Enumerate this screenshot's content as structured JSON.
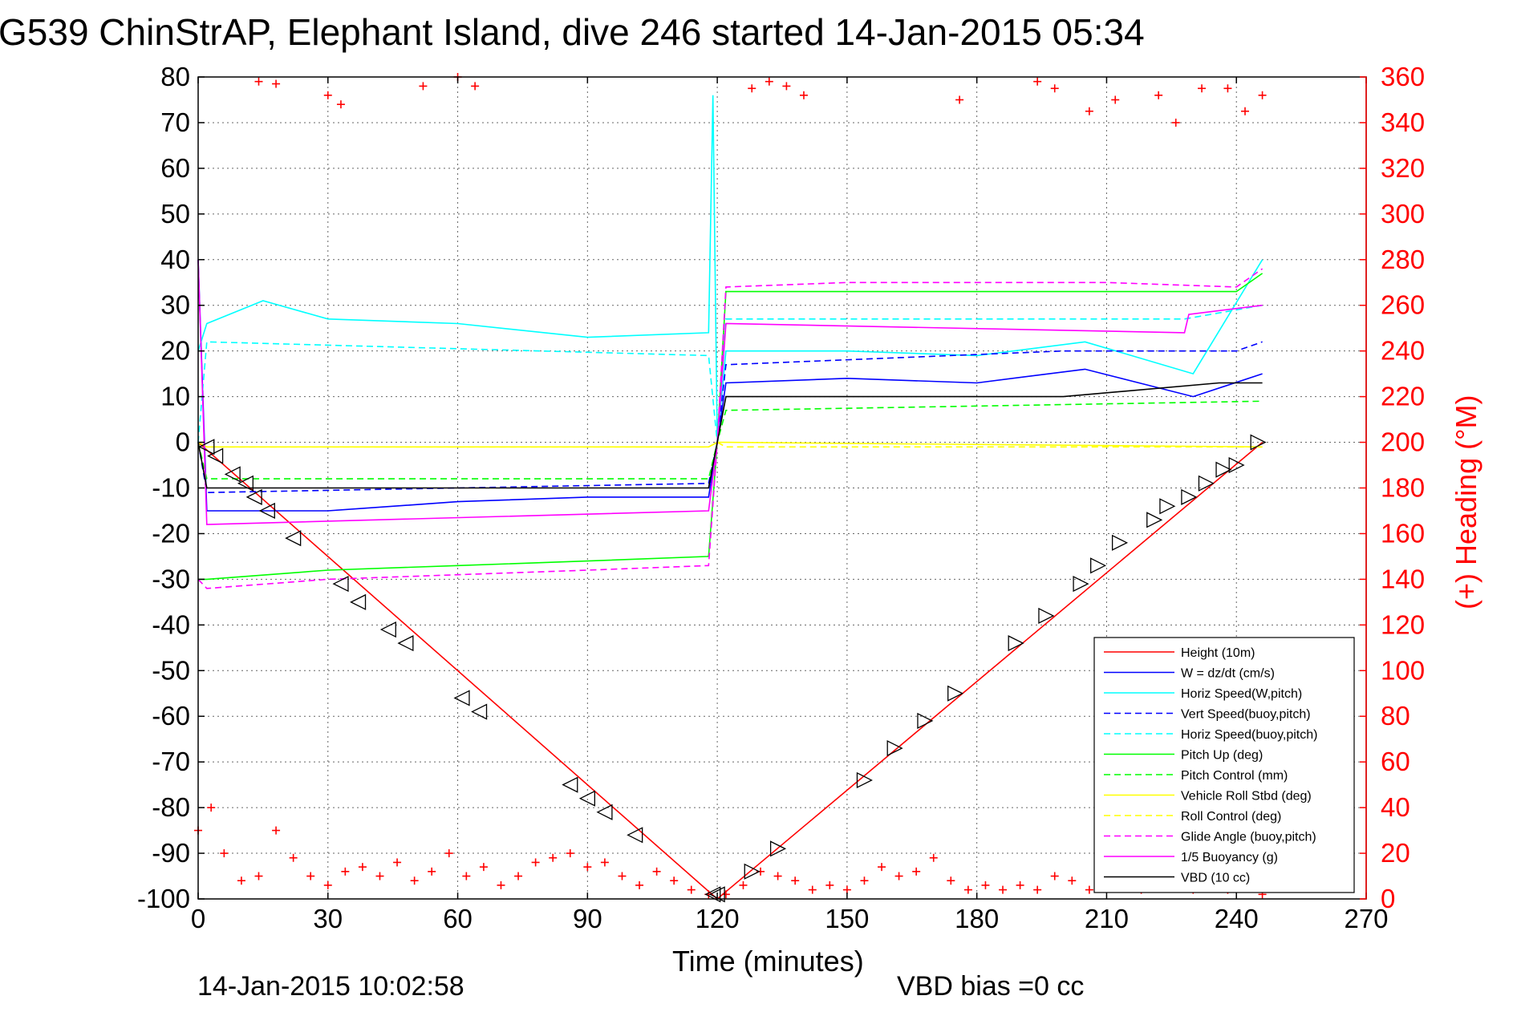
{
  "chart_data": {
    "type": "line",
    "title": "G539 ChinStrAP, Elephant Island, dive 246 started 14-Jan-2015 05:34",
    "xlabel": "Time (minutes)",
    "ylabel": "",
    "y2label": "(+) Heading (°M)",
    "xlim": [
      0,
      270
    ],
    "ylim": [
      -100,
      80
    ],
    "y2lim": [
      0,
      360
    ],
    "xticks": [
      "0",
      "30",
      "60",
      "90",
      "120",
      "150",
      "180",
      "210",
      "240",
      "270"
    ],
    "yticks": [
      "80",
      "70",
      "60",
      "50",
      "40",
      "30",
      "20",
      "10",
      "0",
      "-10",
      "-20",
      "-30",
      "-40",
      "-50",
      "-60",
      "-70",
      "-80",
      "-90",
      "-100"
    ],
    "y2ticks": [
      "360",
      "340",
      "320",
      "300",
      "280",
      "260",
      "240",
      "220",
      "200",
      "180",
      "160",
      "140",
      "120",
      "100",
      "80",
      "60",
      "40",
      "20",
      "0"
    ],
    "grid": true,
    "legend_position": "bottom-right",
    "footer_left": "14-Jan-2015 10:02:58",
    "footer_right": "VBD bias =0 cc",
    "series": [
      {
        "name": "Height (10m)",
        "color": "#ff0000",
        "style": "solid",
        "x": [
          0,
          120,
          246
        ],
        "y": [
          0,
          -100,
          0
        ]
      },
      {
        "name": "W = dz/dt (cm/s)",
        "color": "#0000ff",
        "style": "solid",
        "x": [
          0,
          2,
          30,
          60,
          90,
          118,
          120,
          122,
          150,
          180,
          205,
          230,
          246
        ],
        "y": [
          40,
          -15,
          -15,
          -13,
          -12,
          -12,
          0,
          13,
          14,
          13,
          16,
          10,
          15
        ]
      },
      {
        "name": "Horiz Speed(W,pitch)",
        "color": "#00ffff",
        "style": "solid",
        "x": [
          0,
          2,
          15,
          30,
          60,
          90,
          118,
          119,
          120,
          122,
          150,
          180,
          205,
          230,
          246
        ],
        "y": [
          20,
          26,
          31,
          27,
          26,
          23,
          24,
          76,
          0,
          20,
          20,
          19,
          22,
          15,
          40
        ]
      },
      {
        "name": "Vert Speed(buoy,pitch)",
        "color": "#0000ff",
        "style": "dashed",
        "x": [
          0,
          2,
          118,
          120,
          122,
          200,
          240,
          246
        ],
        "y": [
          0,
          -11,
          -9,
          0,
          17,
          20,
          20,
          22
        ]
      },
      {
        "name": "Horiz Speed(buoy,pitch)",
        "color": "#00ffff",
        "style": "dashed",
        "x": [
          0,
          2,
          118,
          120,
          122,
          228,
          246
        ],
        "y": [
          0,
          22,
          19,
          0,
          27,
          27,
          30
        ]
      },
      {
        "name": "Pitch Up (deg)",
        "color": "#00ff00",
        "style": "solid",
        "x": [
          0,
          2,
          30,
          60,
          90,
          118,
          120,
          122,
          150,
          180,
          210,
          240,
          246
        ],
        "y": [
          -30,
          -30,
          -28,
          -27,
          -26,
          -25,
          0,
          33,
          33,
          33,
          33,
          33,
          37
        ]
      },
      {
        "name": "Pitch Control (mm)",
        "color": "#00ff00",
        "style": "dashed",
        "x": [
          0,
          2,
          118,
          120,
          122,
          246
        ],
        "y": [
          0,
          -8,
          -8,
          0,
          7,
          9
        ]
      },
      {
        "name": "Vehicle Roll Stbd (deg)",
        "color": "#ffff00",
        "style": "solid",
        "x": [
          0,
          2,
          118,
          120,
          122,
          246
        ],
        "y": [
          0,
          -1,
          -1,
          0,
          0,
          -1
        ]
      },
      {
        "name": "Roll Control (deg)",
        "color": "#ffff00",
        "style": "dashed",
        "x": [
          0,
          2,
          118,
          120,
          122,
          246
        ],
        "y": [
          0,
          -1,
          -1,
          0,
          -1,
          -1
        ]
      },
      {
        "name": "Glide Angle (buoy,pitch)",
        "color": "#ff00ff",
        "style": "dashed",
        "x": [
          0,
          2,
          30,
          60,
          90,
          118,
          120,
          122,
          150,
          180,
          210,
          240,
          246
        ],
        "y": [
          -30,
          -32,
          -30,
          -29,
          -28,
          -27,
          0,
          34,
          35,
          35,
          35,
          34,
          38
        ]
      },
      {
        "name": "1/5 Buoyancy (g)",
        "color": "#ff00ff",
        "style": "solid",
        "x": [
          0,
          2,
          118,
          120,
          122,
          228,
          229,
          246
        ],
        "y": [
          40,
          -18,
          -15,
          0,
          26,
          24,
          28,
          30
        ]
      },
      {
        "name": "VBD (10 cc)",
        "color": "#000000",
        "style": "solid",
        "x": [
          0,
          2,
          118,
          120,
          122,
          200,
          236,
          246
        ],
        "y": [
          0,
          -10,
          -10,
          0,
          10,
          10,
          13,
          13
        ]
      }
    ],
    "heading_series": {
      "name": "(+) Heading (°M)",
      "color": "#ff0000",
      "marker": "+",
      "x": [
        0,
        3,
        6,
        10,
        14,
        18,
        22,
        26,
        30,
        34,
        38,
        42,
        46,
        50,
        54,
        58,
        62,
        66,
        70,
        74,
        78,
        82,
        86,
        90,
        94,
        98,
        102,
        106,
        110,
        114,
        118,
        122,
        126,
        130,
        134,
        138,
        142,
        146,
        150,
        154,
        158,
        162,
        166,
        170,
        174,
        178,
        182,
        186,
        190,
        194,
        198,
        202,
        206,
        210,
        214,
        218,
        222,
        226,
        230,
        234,
        238,
        242,
        246
      ],
      "y": [
        30,
        40,
        20,
        8,
        10,
        30,
        18,
        10,
        6,
        12,
        14,
        10,
        16,
        8,
        12,
        20,
        10,
        14,
        6,
        10,
        16,
        18,
        20,
        14,
        16,
        10,
        6,
        12,
        8,
        4,
        2,
        2,
        6,
        12,
        10,
        8,
        4,
        6,
        4,
        8,
        14,
        10,
        12,
        18,
        8,
        4,
        6,
        4,
        6,
        4,
        10,
        8,
        4,
        6,
        8,
        4,
        10,
        6,
        4,
        6,
        4,
        8,
        2
      ]
    },
    "heading_top_series": {
      "color": "#ff0000",
      "marker": "+",
      "x": [
        14,
        18,
        30,
        33,
        52,
        60,
        64,
        128,
        132,
        136,
        140,
        176,
        194,
        198,
        206,
        212,
        222,
        226,
        232,
        238,
        242,
        246
      ],
      "y": [
        358,
        357,
        352,
        348,
        356,
        360,
        356,
        355,
        358,
        356,
        352,
        350,
        358,
        355,
        345,
        350,
        352,
        340,
        355,
        355,
        345,
        352
      ]
    },
    "depth_markers": {
      "x": [
        2,
        4,
        8,
        11,
        13,
        16,
        22,
        33,
        37,
        44,
        48,
        61,
        65,
        86,
        90,
        94,
        101,
        119,
        120,
        128,
        134,
        154,
        161,
        168,
        175,
        189,
        196,
        204,
        208,
        213,
        221,
        224,
        229,
        233,
        237,
        240,
        245
      ],
      "y": [
        -1,
        -3,
        -7,
        -9,
        -12,
        -15,
        -21,
        -31,
        -35,
        -41,
        -44,
        -56,
        -59,
        -75,
        -78,
        -81,
        -86,
        -99,
        -99,
        -94,
        -89,
        -74,
        -67,
        -61,
        -55,
        -44,
        -38,
        -31,
        -27,
        -22,
        -17,
        -14,
        -12,
        -9,
        -6,
        -5,
        0
      ]
    }
  }
}
